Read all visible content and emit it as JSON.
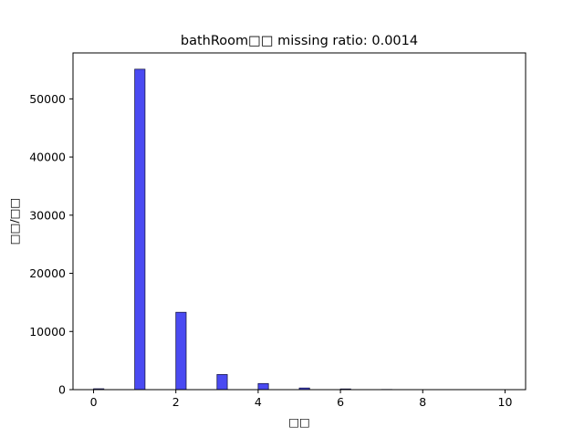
{
  "chart_data": {
    "type": "bar",
    "title": "bathRoom□□  missing ratio: 0.0014",
    "xlabel": "□□",
    "ylabel": "□□/□□",
    "x": [
      0,
      1,
      2,
      3,
      4,
      5,
      6,
      7,
      8,
      9,
      10
    ],
    "values": [
      150,
      55100,
      13300,
      2600,
      1050,
      280,
      120,
      30,
      10,
      5,
      3
    ],
    "bin_width": 0.25,
    "xlim": [
      -0.5,
      10.5
    ],
    "ylim": [
      0,
      57900
    ],
    "xticks": [
      0,
      2,
      4,
      6,
      8,
      10
    ],
    "yticks": [
      0,
      10000,
      20000,
      30000,
      40000,
      50000
    ],
    "bar_color": "#4a4af2",
    "edge_color": "#1a1a4a",
    "grid": false,
    "legend": "none"
  }
}
